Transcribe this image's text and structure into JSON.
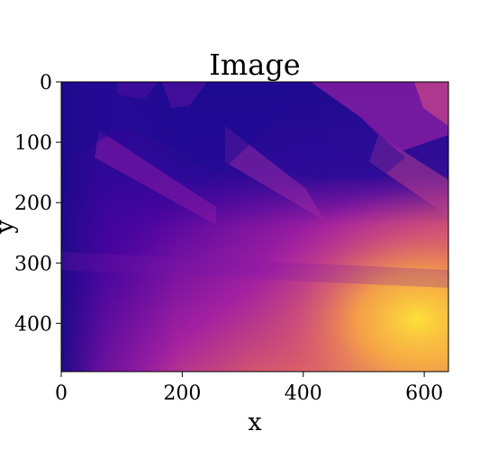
{
  "chart_data": {
    "type": "heatmap",
    "title": "Image",
    "xlabel": "x",
    "ylabel": "y",
    "colormap": "plasma",
    "xlim": [
      0,
      640
    ],
    "ylim": [
      480,
      0
    ],
    "x_ticks": [
      0,
      200,
      400,
      600
    ],
    "y_ticks": [
      0,
      100,
      200,
      300,
      400
    ],
    "grid": false,
    "legend": "none",
    "colors": {
      "dark": "#1a0b8f",
      "mid": "#9b1fa4",
      "bright": "#fcd23c"
    }
  }
}
